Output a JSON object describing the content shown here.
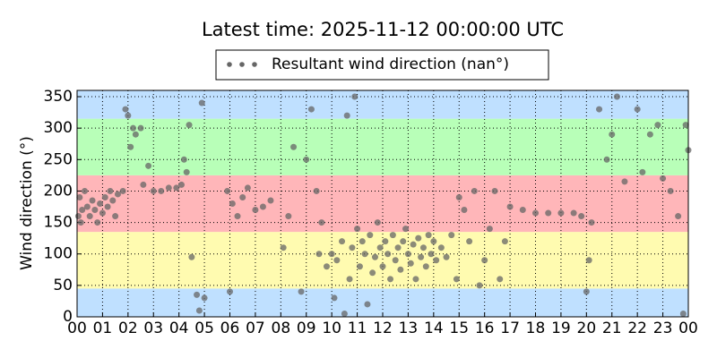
{
  "chart_data": {
    "type": "scatter",
    "title": "Latest time: 2025-11-12 00:00:00 UTC",
    "y_label": "Wind direction (°)",
    "xlim": [
      0,
      24
    ],
    "ylim": [
      0,
      360
    ],
    "xticks": [
      {
        "value": 0,
        "label": "00"
      },
      {
        "value": 1,
        "label": "01"
      },
      {
        "value": 2,
        "label": "02"
      },
      {
        "value": 3,
        "label": "03"
      },
      {
        "value": 4,
        "label": "04"
      },
      {
        "value": 5,
        "label": "05"
      },
      {
        "value": 6,
        "label": "06"
      },
      {
        "value": 7,
        "label": "07"
      },
      {
        "value": 8,
        "label": "08"
      },
      {
        "value": 9,
        "label": "09"
      },
      10,
      11,
      12,
      13,
      14,
      15,
      16,
      17,
      18,
      19,
      20,
      21,
      22,
      23,
      {
        "value": 24,
        "label": "00"
      }
    ],
    "yticks": [
      0,
      50,
      100,
      150,
      200,
      250,
      300,
      350
    ],
    "grid": true,
    "bands": [
      {
        "from": 0,
        "to": 45,
        "color": "#bfe0ff"
      },
      {
        "from": 45,
        "to": 135,
        "color": "#fffbb0"
      },
      {
        "from": 135,
        "to": 225,
        "color": "#ffb6b9"
      },
      {
        "from": 225,
        "to": 315,
        "color": "#b8ffb8"
      },
      {
        "from": 315,
        "to": 360,
        "color": "#bfe0ff"
      }
    ],
    "legend_position": "top",
    "series": [
      {
        "name": "Resultant wind direction (nan°)",
        "color": "#666666",
        "x": [
          0.05,
          0.1,
          0.15,
          0.2,
          0.3,
          0.4,
          0.5,
          0.6,
          0.7,
          0.8,
          0.9,
          1.0,
          1.1,
          1.2,
          1.3,
          1.4,
          1.5,
          1.6,
          1.8,
          1.9,
          2.0,
          2.1,
          2.2,
          2.3,
          2.5,
          2.6,
          2.8,
          3.0,
          3.3,
          3.6,
          3.9,
          4.1,
          4.2,
          4.3,
          4.4,
          4.5,
          4.7,
          4.8,
          4.9,
          5.0,
          5.9,
          6.0,
          6.1,
          6.3,
          6.5,
          6.7,
          7.0,
          7.3,
          7.6,
          8.1,
          8.3,
          8.5,
          8.8,
          9.0,
          9.2,
          9.4,
          9.5,
          9.6,
          9.8,
          10.0,
          10.1,
          10.2,
          10.4,
          10.5,
          10.6,
          10.7,
          10.8,
          10.9,
          11.0,
          11.1,
          11.2,
          11.3,
          11.4,
          11.5,
          11.6,
          11.7,
          11.8,
          11.9,
          12.0,
          12.1,
          12.2,
          12.3,
          12.4,
          12.5,
          12.6,
          12.7,
          12.8,
          12.9,
          13.0,
          13.1,
          13.2,
          13.3,
          13.4,
          13.5,
          13.6,
          13.7,
          13.8,
          13.9,
          14.0,
          14.1,
          14.3,
          14.5,
          14.7,
          14.9,
          15.0,
          15.2,
          15.4,
          15.6,
          15.8,
          16.0,
          16.2,
          16.4,
          16.6,
          16.8,
          17.0,
          17.5,
          18.0,
          18.5,
          19.0,
          19.5,
          19.8,
          20.0,
          20.1,
          20.2,
          20.5,
          20.8,
          21.0,
          21.2,
          21.5,
          22.0,
          22.2,
          22.5,
          22.8,
          23.0,
          23.3,
          23.6,
          23.8,
          23.9,
          24.0
        ],
        "values": [
          160,
          190,
          150,
          170,
          200,
          175,
          160,
          185,
          170,
          150,
          180,
          165,
          190,
          175,
          200,
          185,
          160,
          195,
          200,
          330,
          320,
          270,
          300,
          290,
          300,
          210,
          240,
          200,
          200,
          205,
          205,
          210,
          250,
          230,
          305,
          95,
          35,
          10,
          340,
          30,
          200,
          40,
          180,
          160,
          190,
          205,
          170,
          175,
          185,
          110,
          160,
          270,
          40,
          250,
          330,
          200,
          100,
          150,
          80,
          100,
          30,
          90,
          120,
          5,
          320,
          60,
          110,
          350,
          140,
          80,
          120,
          100,
          20,
          130,
          70,
          95,
          150,
          110,
          80,
          120,
          100,
          60,
          130,
          90,
          110,
          75,
          120,
          140,
          100,
          85,
          115,
          60,
          125,
          95,
          110,
          80,
          130,
          100,
          120,
          90,
          110,
          95,
          130,
          60,
          190,
          170,
          120,
          200,
          50,
          90,
          140,
          200,
          60,
          120,
          175,
          170,
          165,
          165,
          165,
          165,
          160,
          40,
          90,
          150,
          330,
          250,
          290,
          350,
          215,
          330,
          230,
          290,
          305,
          220,
          200,
          160,
          5,
          305,
          265
        ]
      }
    ]
  }
}
